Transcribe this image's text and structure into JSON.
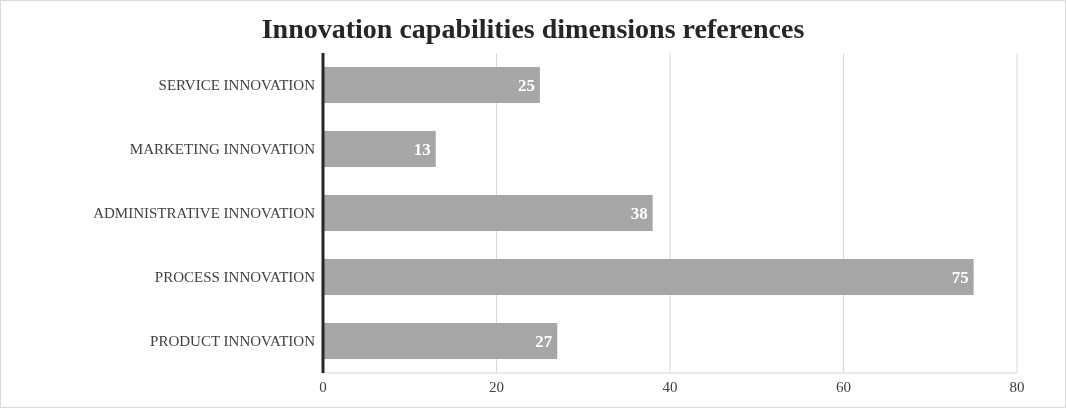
{
  "chart_data": {
    "type": "bar",
    "orientation": "horizontal",
    "title": "Innovation capabilities dimensions references",
    "categories": [
      "SERVICE INNOVATION",
      "MARKETING INNOVATION",
      "ADMINISTRATIVE INNOVATION",
      "PROCESS INNOVATION",
      "PRODUCT INNOVATION"
    ],
    "values": [
      25,
      13,
      38,
      75,
      27
    ],
    "color": "#a6a6a6",
    "xlim": [
      0,
      80
    ],
    "xticks": [
      0,
      20,
      40,
      60,
      80
    ],
    "grid": "x",
    "data_labels": true
  }
}
